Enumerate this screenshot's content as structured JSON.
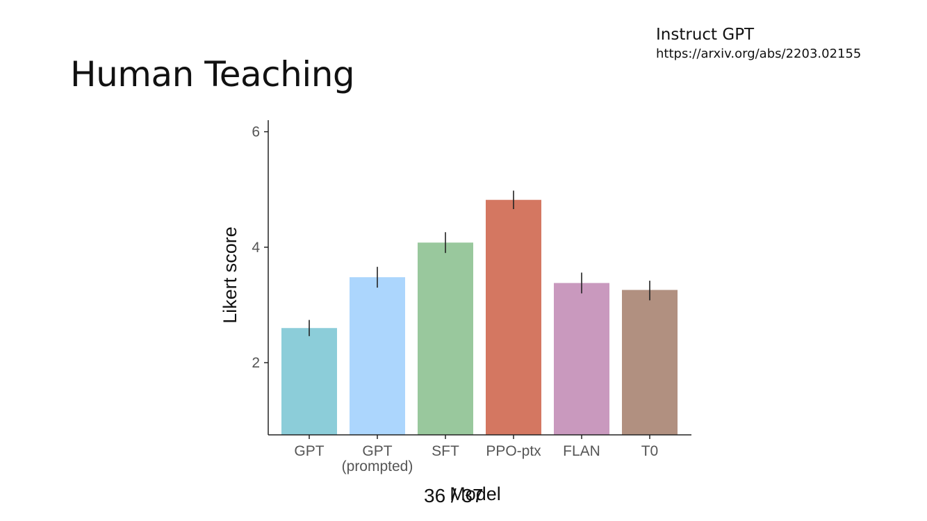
{
  "slide": {
    "title": "Human Teaching",
    "reference_title": "Instruct GPT",
    "reference_link": "https://arxiv.org/abs/2203.02155",
    "page_number": "36 / 37"
  },
  "chart_data": {
    "type": "bar",
    "title": "",
    "xlabel": "Model",
    "ylabel": "Likert score",
    "categories": [
      [
        "GPT"
      ],
      [
        "GPT",
        "(prompted)"
      ],
      [
        "SFT"
      ],
      [
        "PPO-ptx"
      ],
      [
        "FLAN"
      ],
      [
        "T0"
      ]
    ],
    "values": [
      2.6,
      3.48,
      4.08,
      4.82,
      3.38,
      3.26
    ],
    "error_low": [
      2.46,
      3.3,
      3.9,
      4.66,
      3.2,
      3.08
    ],
    "error_high": [
      2.74,
      3.66,
      4.26,
      4.98,
      3.56,
      3.42
    ],
    "colors": [
      "#8ccdd9",
      "#acd6fd",
      "#99c89d",
      "#d47761",
      "#c999be",
      "#b19080"
    ],
    "ylim": [
      0.75,
      6.2
    ],
    "yticks": [
      2,
      4,
      6
    ],
    "grid": false,
    "legend": "none"
  }
}
